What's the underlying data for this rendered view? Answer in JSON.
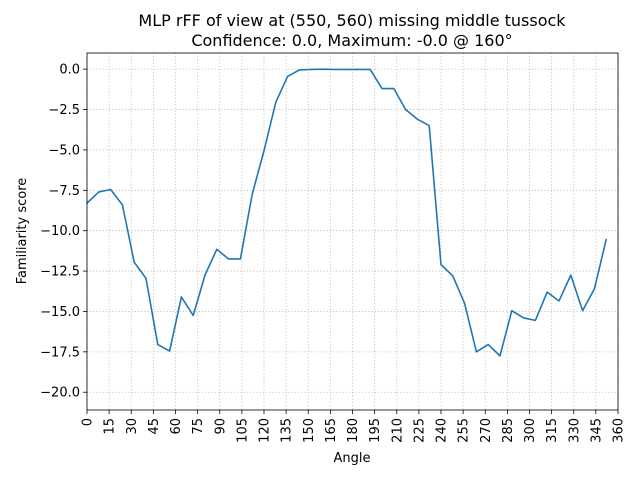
{
  "chart_data": {
    "type": "line",
    "title": "MLP rFF of view at (550, 560) missing middle tussock",
    "subtitle": "Confidence: 0.0, Maximum: -0.0 @ 160°",
    "xlabel": "Angle",
    "ylabel": "Familiarity score",
    "xlim": [
      0,
      360
    ],
    "ylim": [
      -21.1,
      1.0
    ],
    "x_ticks": [
      0,
      15,
      30,
      45,
      60,
      75,
      90,
      105,
      120,
      135,
      150,
      165,
      180,
      195,
      210,
      225,
      240,
      255,
      270,
      285,
      300,
      315,
      330,
      345,
      360
    ],
    "x_tick_labels": [
      "0",
      "15",
      "30",
      "45",
      "60",
      "75",
      "90",
      "105",
      "120",
      "135",
      "150",
      "165",
      "180",
      "195",
      "210",
      "225",
      "240",
      "255",
      "270",
      "285",
      "300",
      "315",
      "330",
      "345",
      "360"
    ],
    "y_ticks": [
      0.0,
      -2.5,
      -5.0,
      -7.5,
      -10.0,
      -12.5,
      -15.0,
      -17.5,
      -20.0
    ],
    "y_tick_labels": [
      "0.0",
      "−2.5",
      "−5.0",
      "−7.5",
      "−10.0",
      "−12.5",
      "−15.0",
      "−17.5",
      "−20.0"
    ],
    "grid": true,
    "color": "#1f77b4",
    "series": [
      {
        "x": [
          0,
          8,
          16,
          24,
          32,
          40,
          48,
          56,
          64,
          72,
          80,
          88,
          96,
          104,
          112,
          120,
          128,
          136,
          144,
          152,
          160,
          168,
          176,
          184,
          192,
          200,
          208,
          216,
          224,
          232,
          240,
          248,
          256,
          264,
          272,
          280,
          288,
          296,
          304,
          312,
          320,
          328,
          336,
          344,
          352
        ],
        "y": [
          -8.3,
          -7.6,
          -7.45,
          -8.4,
          -11.95,
          -12.95,
          -17.05,
          -17.45,
          -14.1,
          -15.25,
          -12.75,
          -11.15,
          -11.75,
          -11.75,
          -7.75,
          -5.05,
          -2.05,
          -0.45,
          -0.05,
          -0.02,
          0.0,
          -0.02,
          -0.02,
          -0.02,
          -0.02,
          -1.2,
          -1.2,
          -2.5,
          -3.1,
          -3.5,
          -12.1,
          -12.8,
          -14.5,
          -17.5,
          -17.05,
          -17.75,
          -14.95,
          -15.4,
          -15.55,
          -13.8,
          -14.35,
          -12.75,
          -14.95,
          -13.6,
          -10.55
        ]
      }
    ]
  }
}
